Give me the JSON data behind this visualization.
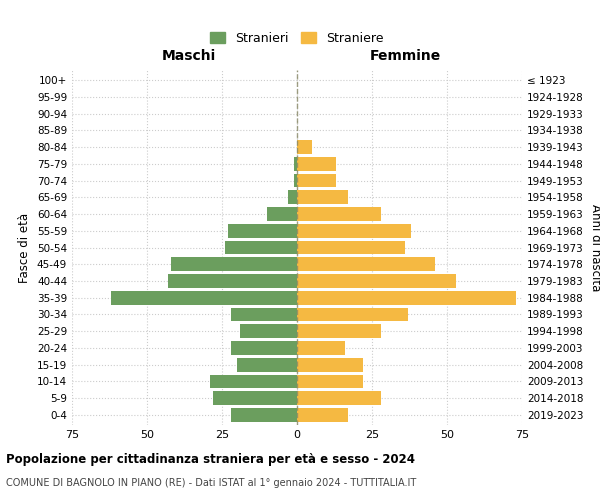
{
  "age_groups": [
    "0-4",
    "5-9",
    "10-14",
    "15-19",
    "20-24",
    "25-29",
    "30-34",
    "35-39",
    "40-44",
    "45-49",
    "50-54",
    "55-59",
    "60-64",
    "65-69",
    "70-74",
    "75-79",
    "80-84",
    "85-89",
    "90-94",
    "95-99",
    "100+"
  ],
  "birth_years": [
    "2019-2023",
    "2014-2018",
    "2009-2013",
    "2004-2008",
    "1999-2003",
    "1994-1998",
    "1989-1993",
    "1984-1988",
    "1979-1983",
    "1974-1978",
    "1969-1973",
    "1964-1968",
    "1959-1963",
    "1954-1958",
    "1949-1953",
    "1944-1948",
    "1939-1943",
    "1934-1938",
    "1929-1933",
    "1924-1928",
    "≤ 1923"
  ],
  "maschi": [
    22,
    28,
    29,
    20,
    22,
    19,
    22,
    62,
    43,
    42,
    24,
    23,
    10,
    3,
    1,
    1,
    0,
    0,
    0,
    0,
    0
  ],
  "femmine": [
    17,
    28,
    22,
    22,
    16,
    28,
    37,
    73,
    53,
    46,
    36,
    38,
    28,
    17,
    13,
    13,
    5,
    0,
    0,
    0,
    0
  ],
  "maschi_color": "#6b9e5e",
  "femmine_color": "#f5b942",
  "bg_color": "#ffffff",
  "grid_color": "#cccccc",
  "center_line_color": "#888866",
  "xlim": 75,
  "title": "Popolazione per cittadinanza straniera per età e sesso - 2024",
  "subtitle": "COMUNE DI BAGNOLO IN PIANO (RE) - Dati ISTAT al 1° gennaio 2024 - TUTTITALIA.IT",
  "xlabel_left": "Maschi",
  "xlabel_right": "Femmine",
  "ylabel_left": "Fasce di età",
  "ylabel_right": "Anni di nascita",
  "legend_maschi": "Stranieri",
  "legend_femmine": "Straniere"
}
